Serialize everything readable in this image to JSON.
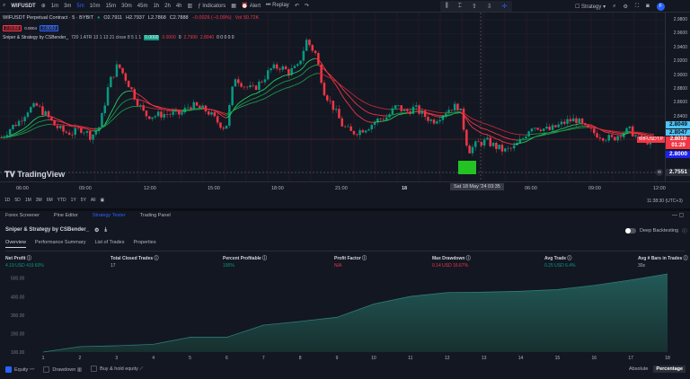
{
  "toolbar": {
    "symbol": "WIFUSDT",
    "timeframes": [
      "1m",
      "3m",
      "5m",
      "10m",
      "15m",
      "30m",
      "45m",
      "1h",
      "2h",
      "4h"
    ],
    "active_timeframe": "5m",
    "indicators": "Indicators",
    "alert": "Alert",
    "replay": "Replay",
    "strategy": "Strategy",
    "avatar": "F"
  },
  "legend": {
    "title": "WIFUSDT Perpetual Contract · 5 · BYBIT",
    "o": "O2.7911",
    "h": "H2.7937",
    "l": "L2.7868",
    "c": "C2.7888",
    "chg": "−0.0026 (−0.09%)",
    "vol": "Vol 50.72K",
    "badge_sell": "2.8088",
    "spread": "0.0004",
    "badge_buy": "2.8092"
  },
  "indicator": {
    "name": "Sniper & Strategy by CSBender_",
    "params": "720 1 ATR 13 1 13 21 close 8 5 1 1",
    "v1": "0.0000",
    "v2": "0.0000",
    "v3": "0",
    "v4": "2.7990",
    "v5": "2.8040",
    "rest": "0 0 0 0 0"
  },
  "price_axis": {
    "labels": [
      "2.9800",
      "2.9600",
      "2.9400",
      "2.9200",
      "2.9000",
      "2.8800",
      "2.8600",
      "2.8400"
    ],
    "tag1": "2.8049",
    "tag2": "2.8047",
    "symbol_tag": "WIFUSDT.P",
    "last": "2.8010",
    "countdown": "01:29",
    "crosshair": "2.8000",
    "bottom": "2.7551"
  },
  "price_series": [
    2.8075,
    2.8205,
    2.8309,
    2.8478,
    2.853,
    2.84,
    2.8244,
    2.8153,
    2.814,
    2.8205,
    2.8088,
    2.8244,
    2.8855,
    2.9127,
    2.8894,
    2.8634,
    2.84,
    2.8387,
    2.8413,
    2.8413,
    2.8413,
    2.8543,
    2.8504,
    2.8452,
    2.8309,
    2.8205,
    2.8958,
    2.8829,
    2.8764,
    2.8894,
    2.9062,
    2.9101,
    2.9023,
    2.9088,
    2.9478,
    2.9283,
    2.8725,
    2.8504,
    2.8244,
    2.814,
    2.8179,
    2.8244,
    2.8335,
    2.8374,
    2.853,
    2.8439,
    2.8504,
    2.84,
    2.8309,
    2.84,
    2.8504,
    2.853,
    2.788,
    2.7984,
    2.8023,
    2.7945,
    2.788,
    2.7919,
    2.8049,
    2.8244,
    2.8218,
    2.8179,
    2.8244,
    2.8309,
    2.8335,
    2.8205,
    2.814,
    2.8088,
    2.8049,
    2.814,
    2.8179,
    2.8049,
    2.8023
  ],
  "logo": "TradingView",
  "time_axis": {
    "labels": [
      "06:00",
      "09:00",
      "12:00",
      "15:00",
      "18:00",
      "21:00",
      "18",
      "06:00",
      "09:00",
      "12:00"
    ],
    "crosshair": "Sat 18 May '24   03:35"
  },
  "range_bar": {
    "ranges": [
      "1D",
      "5D",
      "1M",
      "3M",
      "6M",
      "YTD",
      "1Y",
      "5Y",
      "All"
    ],
    "clock": "11:38:30 (UTC+3)"
  },
  "panel": {
    "tabs": [
      "Forex Screener",
      "Pine Editor",
      "Strategy Tester",
      "Trading Panel"
    ],
    "active_tab": "Strategy Tester",
    "strategy_title": "Sniper & Strategy by CSBender_",
    "deep_backtesting": "Deep Backtesting",
    "sub_tabs": [
      "Overview",
      "Performance Summary",
      "List of Trades",
      "Properties"
    ]
  },
  "stats": [
    {
      "label": "Net Profit",
      "value": "4.19 USD",
      "extra": "419.60%",
      "color": "#089981"
    },
    {
      "label": "Total Closed Trades",
      "value": "17",
      "extra": "",
      "color": "#b2b5be"
    },
    {
      "label": "Percent Profitable",
      "value": "100%",
      "extra": "",
      "color": "#089981"
    },
    {
      "label": "Profit Factor",
      "value": "N/A",
      "extra": "",
      "color": "#f23645"
    },
    {
      "label": "Max Drawdown",
      "value": "0.14 USD",
      "extra": "16.67%",
      "color": "#f23645"
    },
    {
      "label": "Avg Trade",
      "value": "0.25 USD",
      "extra": "6.4%",
      "color": "#089981"
    },
    {
      "label": "Avg # Bars in Trades",
      "value": "30s",
      "extra": "",
      "color": "#b2b5be"
    }
  ],
  "chart_data": {
    "type": "area",
    "x": [
      1,
      2,
      3,
      4,
      5,
      6,
      7,
      8,
      9,
      10,
      11,
      12,
      13,
      14,
      15,
      16,
      17,
      18
    ],
    "values": [
      100,
      129,
      134,
      142,
      180,
      180,
      246,
      266,
      288,
      360,
      401,
      422,
      424,
      429,
      438,
      461,
      490,
      523
    ],
    "yticks": [
      "100.00",
      "200.00",
      "300.00",
      "400.00",
      "500.00"
    ],
    "ylim": [
      100,
      530
    ],
    "fill": "#1f4a4a",
    "line": "#2e7d7a"
  },
  "bottom": {
    "equity": "Equity",
    "drawdown": "Drawdown",
    "buyhold": "Buy & hold equity",
    "absolute": "Absolute",
    "percentage": "Percentage"
  }
}
